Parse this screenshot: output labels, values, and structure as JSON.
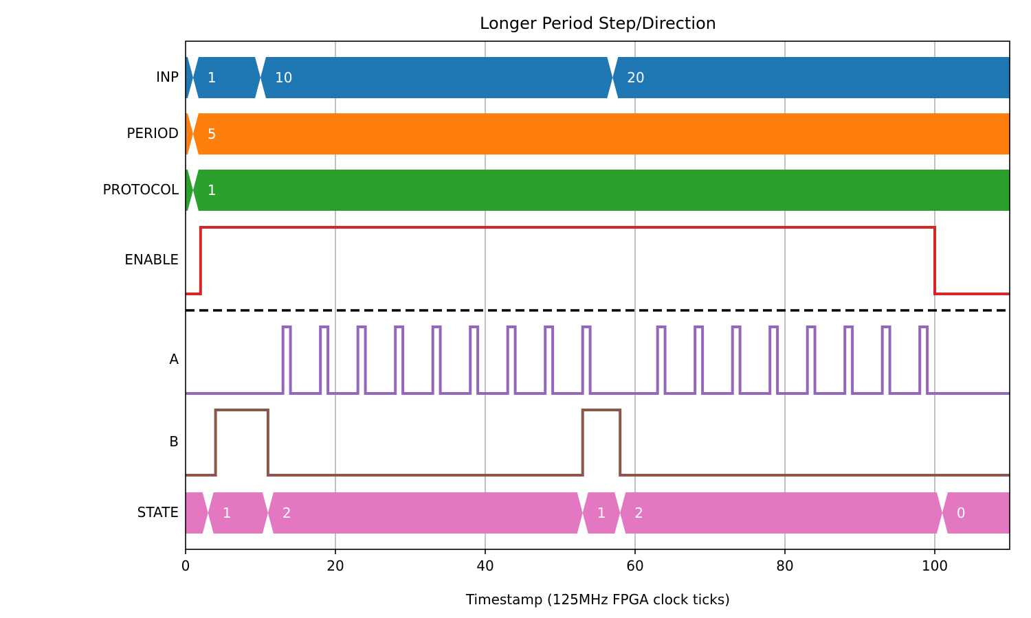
{
  "chart_data": {
    "type": "timing-diagram",
    "title": "Longer Period Step/Direction",
    "xlabel": "Timestamp (125MHz FPGA clock ticks)",
    "ylabel": "",
    "xlim": [
      0,
      110
    ],
    "xticks": [
      0,
      20,
      40,
      60,
      80,
      100
    ],
    "grid": true,
    "separator": "dashed line between ENABLE and A (inputs above, outputs below)",
    "signals": [
      {
        "name": "INP",
        "kind": "bus",
        "color": "#1f77b4",
        "segments": [
          {
            "start": 0,
            "end": 1,
            "label": ""
          },
          {
            "start": 1,
            "end": 10,
            "label": "1"
          },
          {
            "start": 10,
            "end": 57,
            "label": "10"
          },
          {
            "start": 57,
            "end": 110,
            "label": "20"
          }
        ]
      },
      {
        "name": "PERIOD",
        "kind": "bus",
        "color": "#ff7f0e",
        "segments": [
          {
            "start": 0,
            "end": 1,
            "label": ""
          },
          {
            "start": 1,
            "end": 110,
            "label": "5"
          }
        ]
      },
      {
        "name": "PROTOCOL",
        "kind": "bus",
        "color": "#2ca02c",
        "segments": [
          {
            "start": 0,
            "end": 1,
            "label": ""
          },
          {
            "start": 1,
            "end": 110,
            "label": "1"
          }
        ]
      },
      {
        "name": "ENABLE",
        "kind": "bit",
        "color": "#d62728",
        "transitions": [
          [
            0,
            0
          ],
          [
            2,
            1
          ],
          [
            100,
            0
          ]
        ]
      },
      {
        "name": "A",
        "kind": "bit",
        "color": "#9467bd",
        "transitions": [
          [
            0,
            0
          ],
          [
            13,
            1
          ],
          [
            14,
            0
          ],
          [
            18,
            1
          ],
          [
            19,
            0
          ],
          [
            23,
            1
          ],
          [
            24,
            0
          ],
          [
            28,
            1
          ],
          [
            29,
            0
          ],
          [
            33,
            1
          ],
          [
            34,
            0
          ],
          [
            38,
            1
          ],
          [
            39,
            0
          ],
          [
            43,
            1
          ],
          [
            44,
            0
          ],
          [
            48,
            1
          ],
          [
            49,
            0
          ],
          [
            53,
            1
          ],
          [
            54,
            0
          ],
          [
            63,
            1
          ],
          [
            64,
            0
          ],
          [
            68,
            1
          ],
          [
            69,
            0
          ],
          [
            73,
            1
          ],
          [
            74,
            0
          ],
          [
            78,
            1
          ],
          [
            79,
            0
          ],
          [
            83,
            1
          ],
          [
            84,
            0
          ],
          [
            88,
            1
          ],
          [
            89,
            0
          ],
          [
            93,
            1
          ],
          [
            94,
            0
          ],
          [
            98,
            1
          ],
          [
            99,
            0
          ]
        ]
      },
      {
        "name": "B",
        "kind": "bit",
        "color": "#8c564b",
        "transitions": [
          [
            0,
            0
          ],
          [
            4,
            1
          ],
          [
            11,
            0
          ],
          [
            53,
            1
          ],
          [
            58,
            0
          ]
        ]
      },
      {
        "name": "STATE",
        "kind": "bus",
        "color": "#e377c2",
        "segments": [
          {
            "start": 0,
            "end": 3,
            "label": ""
          },
          {
            "start": 3,
            "end": 11,
            "label": "1"
          },
          {
            "start": 11,
            "end": 53,
            "label": "2"
          },
          {
            "start": 53,
            "end": 58,
            "label": "1"
          },
          {
            "start": 58,
            "end": 101,
            "label": "2"
          },
          {
            "start": 101,
            "end": 110,
            "label": "0"
          }
        ]
      }
    ]
  }
}
